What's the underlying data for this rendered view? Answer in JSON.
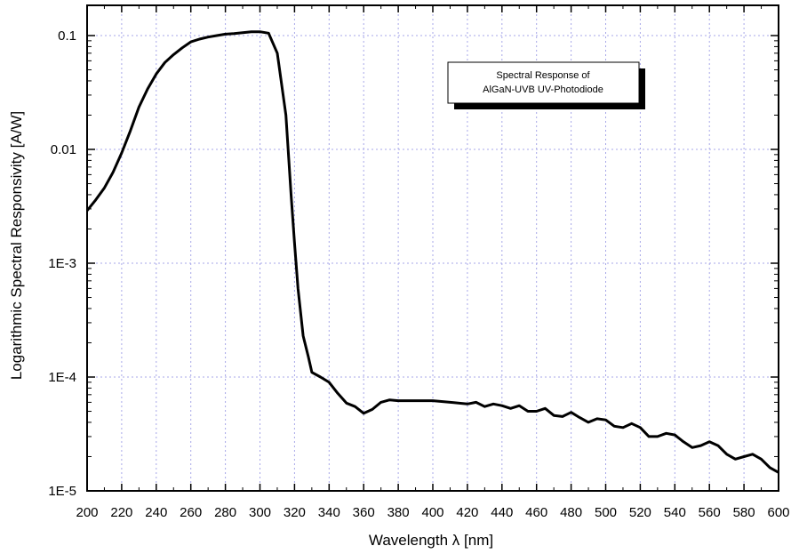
{
  "chart_data": {
    "type": "line",
    "xlabel": "Wavelength λ [nm]",
    "ylabel": "Logarithmic Spectral Responsivity [A/W]",
    "xlim": [
      200,
      600
    ],
    "ylim": [
      1e-05,
      0.1
    ],
    "y_scale": "log",
    "grid": true,
    "x_ticks": [
      200,
      220,
      240,
      260,
      280,
      300,
      320,
      340,
      360,
      380,
      400,
      420,
      440,
      460,
      480,
      500,
      520,
      540,
      560,
      580,
      600
    ],
    "y_ticks": [
      {
        "value": 0.1,
        "label": "0.1"
      },
      {
        "value": 0.01,
        "label": "0.01"
      },
      {
        "value": 0.001,
        "label": "1E-3"
      },
      {
        "value": 0.0001,
        "label": "1E-4"
      },
      {
        "value": 1e-05,
        "label": "1E-5"
      }
    ],
    "legend_lines": [
      "Spectral Response of",
      "AlGaN-UVB UV-Photodiode"
    ],
    "legend_position": "top-right",
    "series": [
      {
        "color": "#000000",
        "points": [
          [
            200,
            0.0029
          ],
          [
            205,
            0.0036
          ],
          [
            210,
            0.0046
          ],
          [
            215,
            0.0063
          ],
          [
            220,
            0.0093
          ],
          [
            225,
            0.0145
          ],
          [
            230,
            0.0235
          ],
          [
            235,
            0.034
          ],
          [
            240,
            0.046
          ],
          [
            245,
            0.058
          ],
          [
            250,
            0.068
          ],
          [
            255,
            0.078
          ],
          [
            260,
            0.088
          ],
          [
            265,
            0.093
          ],
          [
            270,
            0.097
          ],
          [
            275,
            0.1
          ],
          [
            280,
            0.103
          ],
          [
            285,
            0.104
          ],
          [
            290,
            0.106
          ],
          [
            295,
            0.108
          ],
          [
            300,
            0.108
          ],
          [
            305,
            0.105
          ],
          [
            310,
            0.07
          ],
          [
            315,
            0.02
          ],
          [
            318,
            0.004
          ],
          [
            320,
            0.0015
          ],
          [
            322,
            0.0006
          ],
          [
            325,
            0.00023
          ],
          [
            328,
            0.00015
          ],
          [
            330,
            0.00011
          ],
          [
            335,
            0.0001
          ],
          [
            340,
            9e-05
          ],
          [
            345,
            7.2e-05
          ],
          [
            350,
            5.9e-05
          ],
          [
            355,
            5.5e-05
          ],
          [
            360,
            4.8e-05
          ],
          [
            365,
            5.2e-05
          ],
          [
            370,
            6e-05
          ],
          [
            375,
            6.3e-05
          ],
          [
            380,
            6.2e-05
          ],
          [
            390,
            6.2e-05
          ],
          [
            400,
            6.2e-05
          ],
          [
            410,
            6e-05
          ],
          [
            420,
            5.8e-05
          ],
          [
            425,
            6e-05
          ],
          [
            430,
            5.5e-05
          ],
          [
            435,
            5.8e-05
          ],
          [
            440,
            5.6e-05
          ],
          [
            445,
            5.3e-05
          ],
          [
            450,
            5.6e-05
          ],
          [
            455,
            5e-05
          ],
          [
            460,
            5e-05
          ],
          [
            465,
            5.3e-05
          ],
          [
            470,
            4.6e-05
          ],
          [
            475,
            4.5e-05
          ],
          [
            480,
            4.9e-05
          ],
          [
            485,
            4.4e-05
          ],
          [
            490,
            4e-05
          ],
          [
            495,
            4.3e-05
          ],
          [
            500,
            4.2e-05
          ],
          [
            505,
            3.7e-05
          ],
          [
            510,
            3.6e-05
          ],
          [
            515,
            3.9e-05
          ],
          [
            520,
            3.6e-05
          ],
          [
            525,
            3e-05
          ],
          [
            530,
            3e-05
          ],
          [
            535,
            3.2e-05
          ],
          [
            540,
            3.1e-05
          ],
          [
            545,
            2.7e-05
          ],
          [
            550,
            2.4e-05
          ],
          [
            555,
            2.5e-05
          ],
          [
            560,
            2.7e-05
          ],
          [
            565,
            2.5e-05
          ],
          [
            570,
            2.1e-05
          ],
          [
            575,
            1.9e-05
          ],
          [
            580,
            2e-05
          ],
          [
            585,
            2.1e-05
          ],
          [
            590,
            1.9e-05
          ],
          [
            595,
            1.6e-05
          ],
          [
            600,
            1.45e-05
          ]
        ]
      }
    ]
  }
}
